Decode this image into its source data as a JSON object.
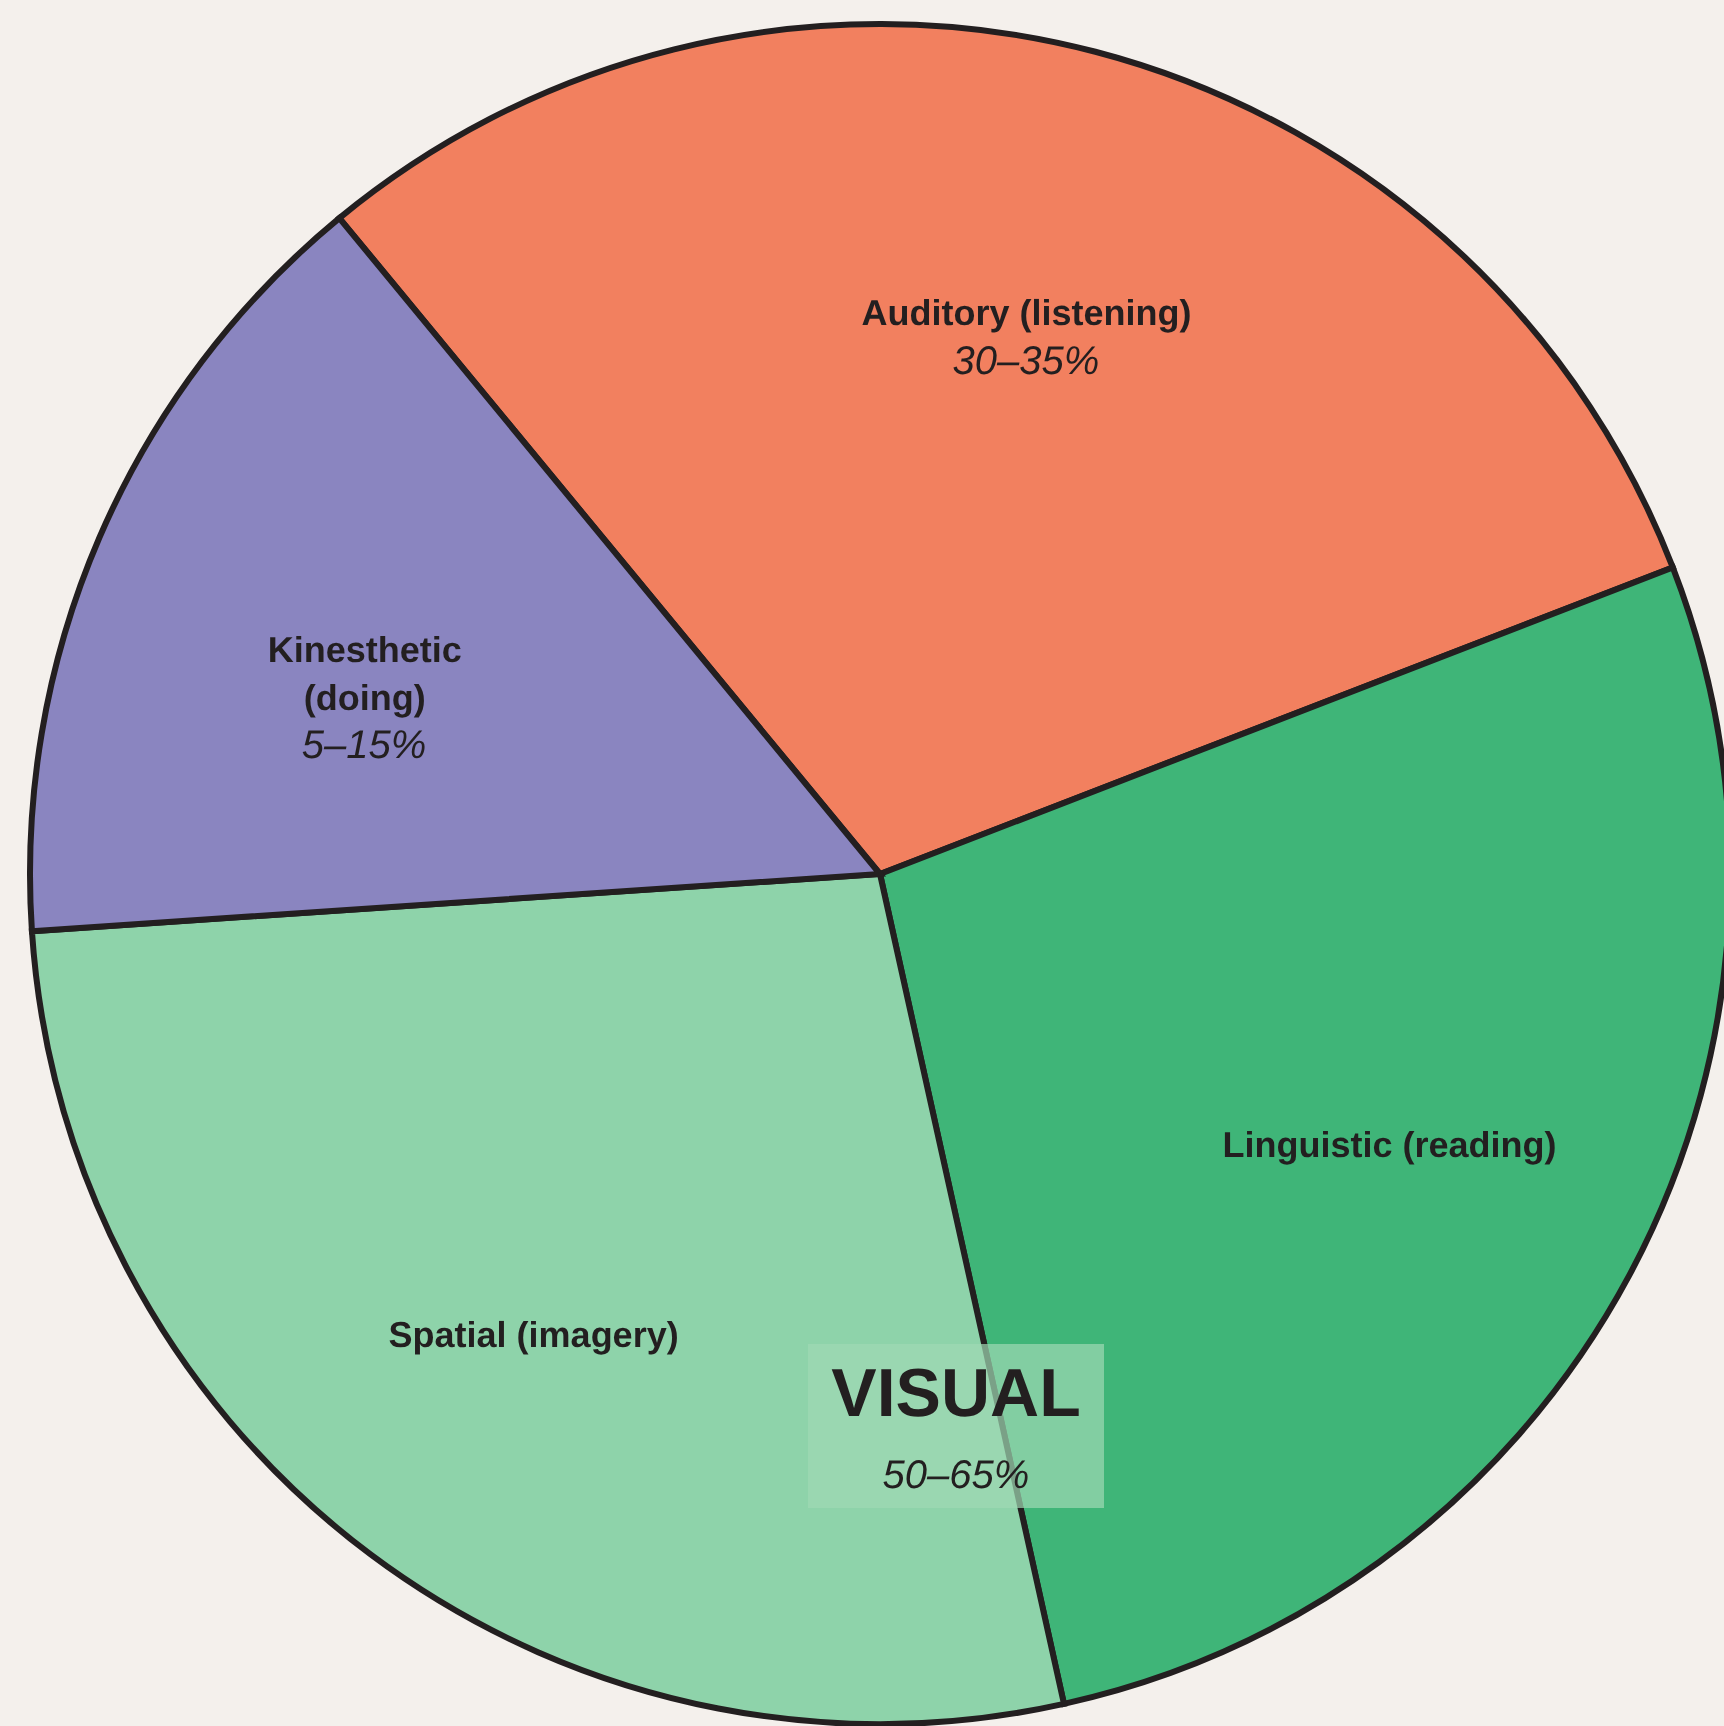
{
  "chart_data": {
    "type": "pie",
    "categories": [
      "Auditory (listening)",
      "Linguistic (reading)",
      "Spatial (imagery)",
      "Kinesthetic (doing)"
    ],
    "values": [
      30.1,
      27.4,
      27.4,
      15.1
    ],
    "colors": [
      "#f2805f",
      "#3fb578",
      "#8ed3aa",
      "#8a85c0"
    ],
    "annotations": [
      "30–35%",
      "5–15%",
      "VISUAL",
      "50–65%"
    ]
  }
}
